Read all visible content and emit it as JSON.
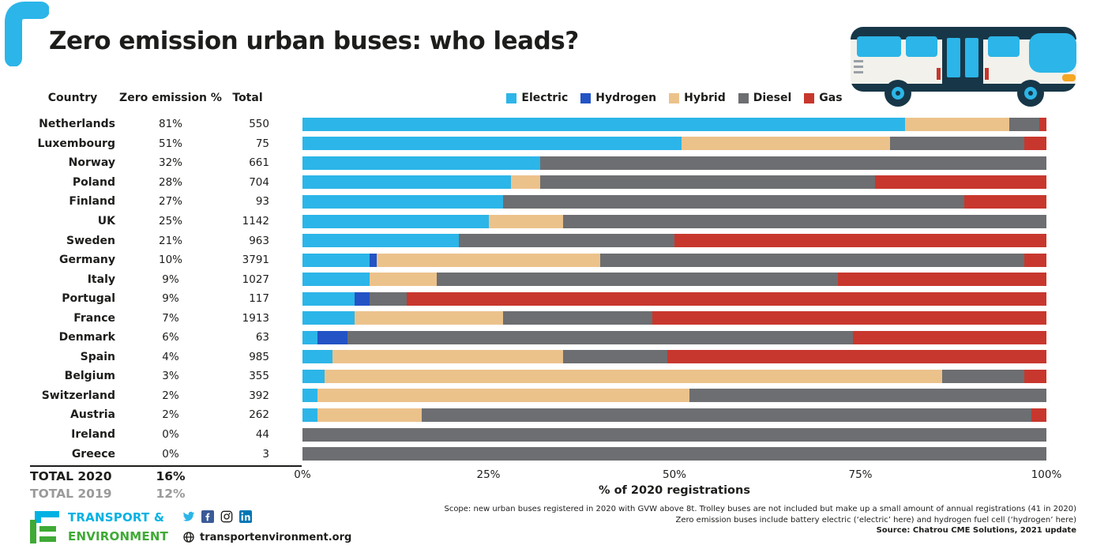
{
  "title": "Zero emission urban buses: who leads?",
  "table": {
    "headers": {
      "country": "Country",
      "zero_emission": "Zero emission %",
      "total": "Total"
    },
    "totals": [
      {
        "label": "TOTAL 2020",
        "pct": "16%",
        "muted": false
      },
      {
        "label": "TOTAL 2019",
        "pct": "12%",
        "muted": true
      }
    ]
  },
  "legend": [
    {
      "label": "Electric",
      "color": "#2cb5e8"
    },
    {
      "label": "Hydrogen",
      "color": "#2353c5"
    },
    {
      "label": "Hybrid",
      "color": "#ecc28b"
    },
    {
      "label": "Diesel",
      "color": "#6d6e71"
    },
    {
      "label": "Gas",
      "color": "#c8372d"
    }
  ],
  "chart_data": {
    "type": "bar",
    "stacked": true,
    "orientation": "horizontal",
    "xlabel": "% of 2020 registrations",
    "x_ticks": [
      "0%",
      "25%",
      "50%",
      "75%",
      "100%"
    ],
    "xlim": [
      0,
      100
    ],
    "series_order": [
      "electric",
      "hydrogen",
      "hybrid",
      "diesel",
      "gas"
    ],
    "series_colors": {
      "electric": "#2cb5e8",
      "hydrogen": "#2353c5",
      "hybrid": "#ecc28b",
      "diesel": "#6d6e71",
      "gas": "#c8372d"
    },
    "rows": [
      {
        "country": "Netherlands",
        "zero_emission_pct": "81%",
        "total": "550",
        "segments": {
          "electric": 81,
          "hydrogen": 0,
          "hybrid": 14,
          "diesel": 4,
          "gas": 1
        }
      },
      {
        "country": "Luxembourg",
        "zero_emission_pct": "51%",
        "total": "75",
        "segments": {
          "electric": 51,
          "hydrogen": 0,
          "hybrid": 28,
          "diesel": 18,
          "gas": 3
        }
      },
      {
        "country": "Norway",
        "zero_emission_pct": "32%",
        "total": "661",
        "segments": {
          "electric": 32,
          "hydrogen": 0,
          "hybrid": 0,
          "diesel": 68,
          "gas": 0
        }
      },
      {
        "country": "Poland",
        "zero_emission_pct": "28%",
        "total": "704",
        "segments": {
          "electric": 28,
          "hydrogen": 0,
          "hybrid": 4,
          "diesel": 45,
          "gas": 23
        }
      },
      {
        "country": "Finland",
        "zero_emission_pct": "27%",
        "total": "93",
        "segments": {
          "electric": 27,
          "hydrogen": 0,
          "hybrid": 0,
          "diesel": 62,
          "gas": 11
        }
      },
      {
        "country": "UK",
        "zero_emission_pct": "25%",
        "total": "1142",
        "segments": {
          "electric": 25,
          "hydrogen": 0,
          "hybrid": 10,
          "diesel": 65,
          "gas": 0
        }
      },
      {
        "country": "Sweden",
        "zero_emission_pct": "21%",
        "total": "963",
        "segments": {
          "electric": 21,
          "hydrogen": 0,
          "hybrid": 0,
          "diesel": 29,
          "gas": 50
        }
      },
      {
        "country": "Germany",
        "zero_emission_pct": "10%",
        "total": "3791",
        "segments": {
          "electric": 9,
          "hydrogen": 1,
          "hybrid": 30,
          "diesel": 57,
          "gas": 3
        }
      },
      {
        "country": "Italy",
        "zero_emission_pct": "9%",
        "total": "1027",
        "segments": {
          "electric": 9,
          "hydrogen": 0,
          "hybrid": 9,
          "diesel": 54,
          "gas": 28
        }
      },
      {
        "country": "Portugal",
        "zero_emission_pct": "9%",
        "total": "117",
        "segments": {
          "electric": 7,
          "hydrogen": 2,
          "hybrid": 0,
          "diesel": 5,
          "gas": 86
        }
      },
      {
        "country": "France",
        "zero_emission_pct": "7%",
        "total": "1913",
        "segments": {
          "electric": 7,
          "hydrogen": 0,
          "hybrid": 20,
          "diesel": 20,
          "gas": 53
        }
      },
      {
        "country": "Denmark",
        "zero_emission_pct": "6%",
        "total": "63",
        "segments": {
          "electric": 2,
          "hydrogen": 4,
          "hybrid": 0,
          "diesel": 68,
          "gas": 26
        }
      },
      {
        "country": "Spain",
        "zero_emission_pct": "4%",
        "total": "985",
        "segments": {
          "electric": 4,
          "hydrogen": 0,
          "hybrid": 31,
          "diesel": 14,
          "gas": 51
        }
      },
      {
        "country": "Belgium",
        "zero_emission_pct": "3%",
        "total": "355",
        "segments": {
          "electric": 3,
          "hydrogen": 0,
          "hybrid": 83,
          "diesel": 11,
          "gas": 3
        }
      },
      {
        "country": "Switzerland",
        "zero_emission_pct": "2%",
        "total": "392",
        "segments": {
          "electric": 2,
          "hydrogen": 0,
          "hybrid": 50,
          "diesel": 48,
          "gas": 0
        }
      },
      {
        "country": "Austria",
        "zero_emission_pct": "2%",
        "total": "262",
        "segments": {
          "electric": 2,
          "hydrogen": 0,
          "hybrid": 14,
          "diesel": 82,
          "gas": 2
        }
      },
      {
        "country": "Ireland",
        "zero_emission_pct": "0%",
        "total": "44",
        "segments": {
          "electric": 0,
          "hydrogen": 0,
          "hybrid": 0,
          "diesel": 100,
          "gas": 0
        }
      },
      {
        "country": "Greece",
        "zero_emission_pct": "0%",
        "total": "3",
        "segments": {
          "electric": 0,
          "hydrogen": 0,
          "hybrid": 0,
          "diesel": 100,
          "gas": 0
        }
      }
    ]
  },
  "footer": {
    "note1": "Scope: new urban buses registered in 2020 with GVW above 8t. Trolley buses are not included but make up a small amount of annual registrations (41 in 2020)",
    "note2": "Zero emission buses include battery electric (‘electric’ here) and hydrogen fuel cell (‘hydrogen’ here)",
    "source": "Source: Chatrou CME Solutions, 2021 update"
  },
  "logo": {
    "line1": "TRANSPORT &",
    "line2": "ENVIRONMENT",
    "website": "transportenvironment.org",
    "social": [
      "twitter-icon",
      "facebook-icon",
      "instagram-icon",
      "linkedin-icon"
    ]
  },
  "colors": {
    "accent_cyan": "#2cb5e8",
    "logo_green": "#3faa35",
    "text": "#1d1d1b",
    "muted": "#9a9a9a"
  }
}
